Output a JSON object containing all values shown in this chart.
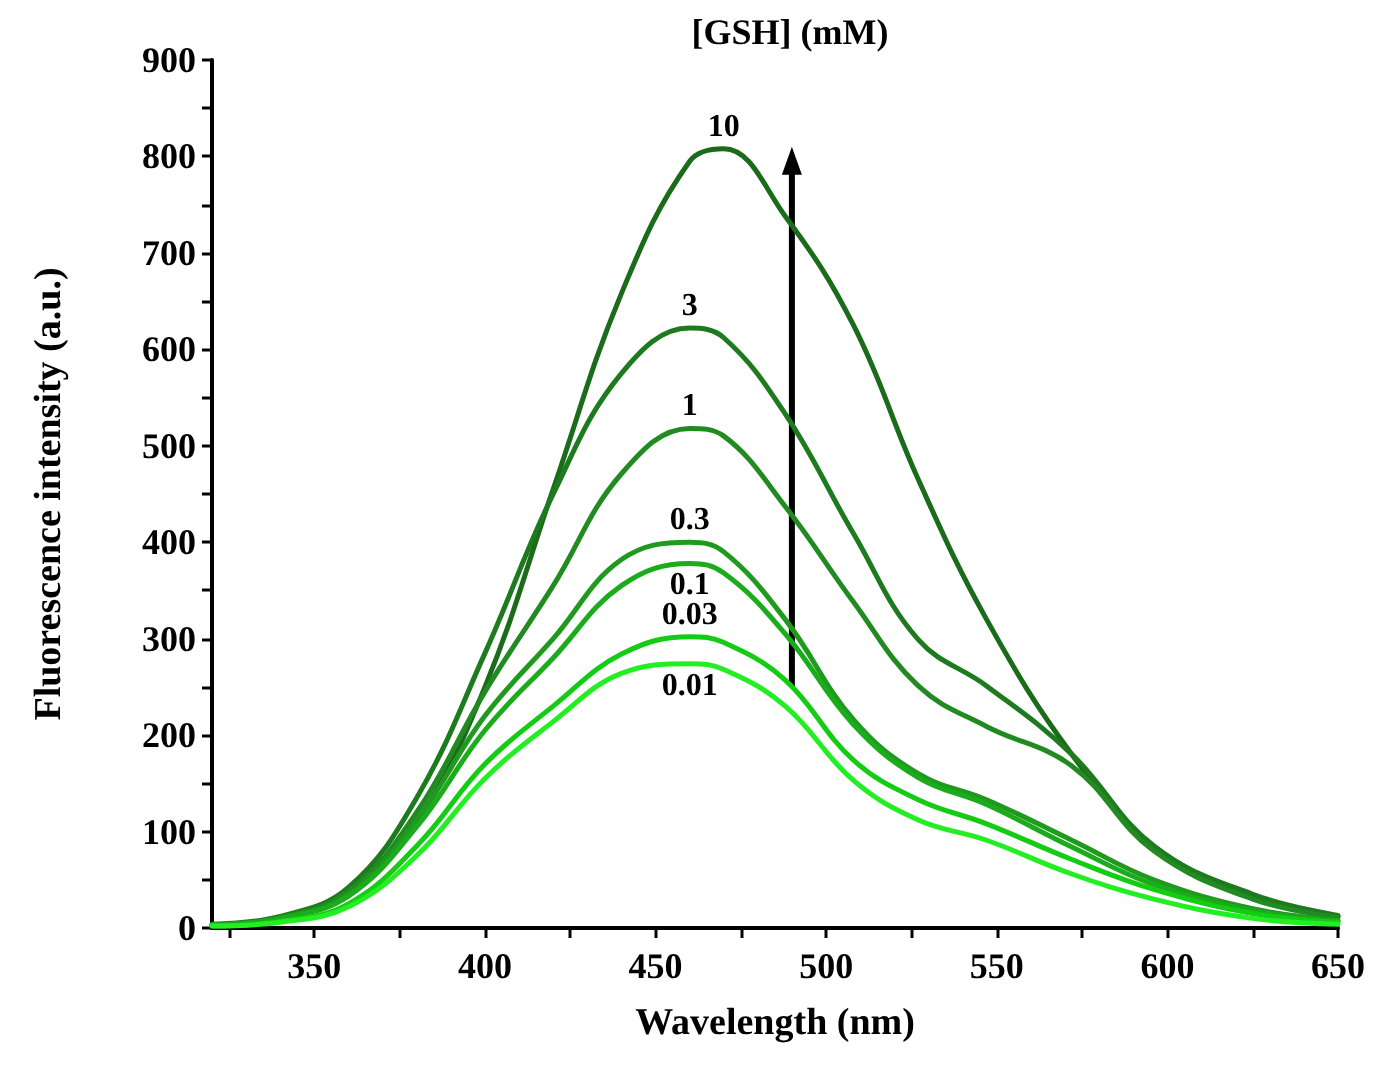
{
  "chart_data": {
    "type": "line",
    "legend_title": "[GSH] (mM)",
    "xlabel": "Wavelength (nm)",
    "ylabel": "Fluorescence intensity (a.u.)",
    "x": [
      320,
      340,
      360,
      380,
      400,
      420,
      440,
      460,
      470,
      488,
      508,
      527,
      547,
      572,
      596,
      625,
      650
    ],
    "series": [
      {
        "name": "10",
        "color": "#1a6b1a",
        "values": [
          3,
          10,
          35,
          110,
          250,
          455,
          658,
          795,
          808,
          738,
          625,
          465,
          320,
          180,
          85,
          33,
          12
        ]
      },
      {
        "name": "3",
        "color": "#1e7a1e",
        "values": [
          4,
          12,
          42,
          135,
          285,
          450,
          575,
          622,
          612,
          533,
          409,
          299,
          251,
          180,
          85,
          35,
          13
        ]
      },
      {
        "name": "1",
        "color": "#218a21",
        "values": [
          3,
          11,
          38,
          120,
          245,
          355,
          471,
          518,
          510,
          437,
          338,
          251,
          209,
          168,
          80,
          30,
          11
        ]
      },
      {
        "name": "0.3",
        "color": "#1f9a1f",
        "values": [
          3,
          10,
          35,
          112,
          220,
          300,
          382,
          400,
          390,
          320,
          216,
          160,
          133,
          91,
          50,
          20,
          8
        ]
      },
      {
        "name": "0.1",
        "color": "#1aac1a",
        "values": [
          3,
          10,
          33,
          105,
          205,
          280,
          355,
          378,
          368,
          305,
          211,
          156,
          128,
          84,
          45,
          18,
          7
        ]
      },
      {
        "name": "0.03",
        "color": "#14cc14",
        "values": [
          2,
          7,
          25,
          85,
          170,
          230,
          284,
          302,
          296,
          257,
          174,
          133,
          108,
          71,
          40,
          15,
          6
        ]
      },
      {
        "name": "0.01",
        "color": "#22ee22",
        "values": [
          2,
          6,
          22,
          75,
          155,
          214,
          264,
          274,
          268,
          230,
          153,
          112,
          91,
          56,
          30,
          10,
          4
        ]
      }
    ],
    "xlim": [
      320,
      650
    ],
    "xticks": [
      {
        "value": 325,
        "label": null
      },
      350,
      {
        "value": 375,
        "label": null
      },
      400,
      {
        "value": 425,
        "label": null
      },
      450,
      {
        "value": 475,
        "label": null
      },
      500,
      {
        "value": 525,
        "label": null
      },
      550,
      {
        "value": 575,
        "label": null
      },
      600,
      {
        "value": 625,
        "label": null
      },
      650
    ],
    "ylim": [
      0,
      900
    ],
    "yticks": [
      0,
      {
        "value": 50,
        "label": null
      },
      100,
      {
        "value": 150,
        "label": null
      },
      200,
      {
        "value": 250,
        "label": null
      },
      300,
      {
        "value": 350,
        "label": null
      },
      400,
      {
        "value": 450,
        "label": null
      },
      500,
      {
        "value": 550,
        "label": null
      },
      600,
      {
        "value": 650,
        "label": null
      },
      700,
      {
        "value": 750,
        "label": null
      },
      800,
      {
        "value": 850,
        "label": null
      },
      900
    ],
    "grid": false,
    "legend": false,
    "marker": "none",
    "line_style": "solid"
  }
}
